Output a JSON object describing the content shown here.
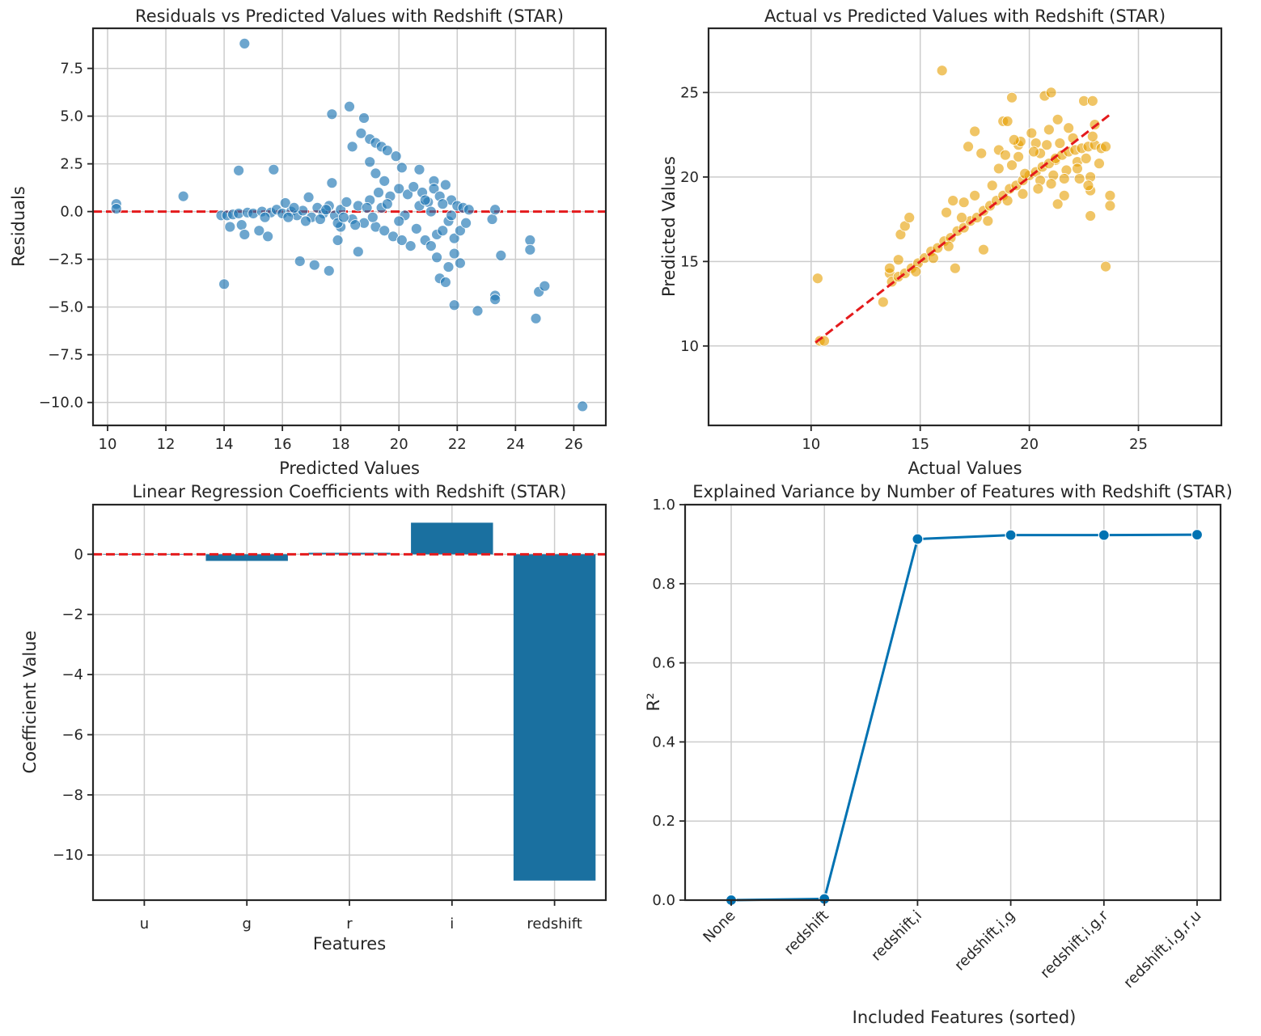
{
  "colors": {
    "blue": "#1f77b4",
    "orange": "#e69f00",
    "line": "#0072b2",
    "bar": "#1a70a0",
    "ref": "#e41a1c"
  },
  "chart_data": [
    {
      "id": "residuals",
      "type": "scatter",
      "title": "Residuals vs Predicted Values with Redshift (STAR)",
      "xlabel": "Predicted Values",
      "ylabel": "Residuals",
      "xlim": [
        9.5,
        27.1
      ],
      "ylim": [
        -11.2,
        9.6
      ],
      "xticks": [
        10,
        12,
        14,
        16,
        18,
        20,
        22,
        24,
        26
      ],
      "yticks": [
        -10.0,
        -7.5,
        -5.0,
        -2.5,
        0.0,
        2.5,
        5.0,
        7.5
      ],
      "ytick_labels": [
        "−10.0",
        "−7.5",
        "−5.0",
        "−2.5",
        "0.0",
        "2.5",
        "5.0",
        "7.5"
      ],
      "grid": true,
      "reference_line": {
        "y": 0
      },
      "points": [
        [
          10.3,
          0.4
        ],
        [
          10.3,
          0.15
        ],
        [
          12.6,
          0.8
        ],
        [
          14.7,
          8.8
        ],
        [
          14.0,
          -3.8
        ],
        [
          14.5,
          2.15
        ],
        [
          15.7,
          2.2
        ],
        [
          14.2,
          -0.8
        ],
        [
          14.6,
          -0.7
        ],
        [
          14.7,
          -1.2
        ],
        [
          15.2,
          -1.0
        ],
        [
          15.5,
          -1.3
        ],
        [
          16.6,
          -2.6
        ],
        [
          17.1,
          -2.8
        ],
        [
          17.6,
          -3.1
        ],
        [
          17.7,
          5.1
        ],
        [
          18.3,
          5.5
        ],
        [
          18.4,
          3.4
        ],
        [
          17.7,
          1.5
        ],
        [
          17.9,
          -1.5
        ],
        [
          18.0,
          -0.8
        ],
        [
          18.6,
          -2.1
        ],
        [
          18.8,
          4.9
        ],
        [
          18.7,
          4.1
        ],
        [
          19.0,
          3.8
        ],
        [
          19.2,
          3.6
        ],
        [
          19.4,
          3.4
        ],
        [
          19.6,
          3.2
        ],
        [
          19.9,
          2.9
        ],
        [
          19.0,
          2.6
        ],
        [
          19.2,
          2.0
        ],
        [
          19.5,
          1.6
        ],
        [
          20.1,
          2.3
        ],
        [
          20.7,
          2.2
        ],
        [
          21.2,
          1.6
        ],
        [
          21.3,
          -2.4
        ],
        [
          21.4,
          -3.5
        ],
        [
          21.6,
          -3.7
        ],
        [
          21.7,
          -2.9
        ],
        [
          21.9,
          -4.9
        ],
        [
          22.1,
          -2.7
        ],
        [
          21.9,
          -2.2
        ],
        [
          22.7,
          -5.2
        ],
        [
          23.2,
          -0.4
        ],
        [
          23.3,
          0.1
        ],
        [
          23.3,
          -4.4
        ],
        [
          23.3,
          -4.6
        ],
        [
          23.5,
          -2.3
        ],
        [
          24.5,
          -1.5
        ],
        [
          24.5,
          -2.0
        ],
        [
          24.7,
          -5.6
        ],
        [
          24.8,
          -4.2
        ],
        [
          25.0,
          -3.9
        ],
        [
          26.3,
          -10.2
        ],
        [
          13.9,
          -0.2
        ],
        [
          14.1,
          -0.2
        ],
        [
          14.3,
          -0.15
        ],
        [
          14.5,
          -0.1
        ],
        [
          14.8,
          -0.05
        ],
        [
          15.0,
          -0.1
        ],
        [
          15.3,
          0.0
        ],
        [
          15.6,
          -0.05
        ],
        [
          15.8,
          0.1
        ],
        [
          16.0,
          -0.1
        ],
        [
          16.1,
          0.45
        ],
        [
          16.3,
          0.0
        ],
        [
          16.5,
          -0.2
        ],
        [
          16.7,
          0.05
        ],
        [
          16.9,
          0.75
        ],
        [
          17.0,
          -0.3
        ],
        [
          17.2,
          0.2
        ],
        [
          17.4,
          -0.1
        ],
        [
          17.6,
          0.3
        ],
        [
          17.8,
          -0.2
        ],
        [
          18.0,
          0.1
        ],
        [
          18.2,
          0.5
        ],
        [
          18.4,
          -0.4
        ],
        [
          18.6,
          0.3
        ],
        [
          18.8,
          -0.6
        ],
        [
          19.0,
          0.6
        ],
        [
          19.2,
          -0.8
        ],
        [
          19.3,
          1.0
        ],
        [
          19.5,
          -1.0
        ],
        [
          19.7,
          0.8
        ],
        [
          19.8,
          -1.3
        ],
        [
          20.0,
          1.2
        ],
        [
          20.1,
          -1.5
        ],
        [
          20.3,
          0.9
        ],
        [
          20.4,
          -1.8
        ],
        [
          20.5,
          1.3
        ],
        [
          20.6,
          -0.9
        ],
        [
          20.8,
          1.0
        ],
        [
          20.9,
          -1.5
        ],
        [
          21.0,
          0.5
        ],
        [
          21.1,
          -1.8
        ],
        [
          21.2,
          1.2
        ],
        [
          21.3,
          -1.2
        ],
        [
          21.4,
          0.8
        ],
        [
          21.5,
          -1.0
        ],
        [
          21.6,
          1.4
        ],
        [
          21.7,
          -0.5
        ],
        [
          21.8,
          0.6
        ],
        [
          21.9,
          -1.4
        ],
        [
          22.0,
          0.3
        ],
        [
          22.1,
          -1.0
        ],
        [
          22.2,
          0.2
        ],
        [
          22.3,
          -0.6
        ],
        [
          22.4,
          0.1
        ],
        [
          15.4,
          -0.3
        ],
        [
          16.2,
          -0.3
        ],
        [
          16.8,
          -0.5
        ],
        [
          17.3,
          -0.4
        ],
        [
          17.9,
          -0.6
        ],
        [
          18.5,
          -0.7
        ],
        [
          19.4,
          0.2
        ],
        [
          20.2,
          -0.2
        ],
        [
          20.7,
          0.3
        ],
        [
          21.1,
          0.0
        ],
        [
          21.5,
          0.4
        ],
        [
          21.8,
          -0.2
        ],
        [
          19.1,
          -0.3
        ],
        [
          19.6,
          0.4
        ],
        [
          20.0,
          -0.5
        ],
        [
          20.9,
          0.6
        ],
        [
          18.9,
          0.2
        ],
        [
          18.1,
          -0.3
        ],
        [
          17.5,
          0.1
        ],
        [
          16.4,
          0.2
        ]
      ]
    },
    {
      "id": "actual-vs-predicted",
      "type": "scatter",
      "title": "Actual vs Predicted Values with Redshift (STAR)",
      "xlabel": "Actual Values",
      "ylabel": "Predicted Values",
      "xlim": [
        5.3,
        28.8
      ],
      "ylim": [
        5.3,
        28.8
      ],
      "xticks": [
        10,
        15,
        20,
        25
      ],
      "yticks": [
        10,
        15,
        20,
        25
      ],
      "grid": true,
      "reference_line": {
        "from": [
          10.2,
          10.2
        ],
        "to": [
          23.7,
          23.7
        ]
      },
      "points": [
        [
          10.3,
          14.0
        ],
        [
          10.4,
          10.3
        ],
        [
          10.6,
          10.3
        ],
        [
          13.3,
          12.6
        ],
        [
          13.6,
          14.3
        ],
        [
          14.1,
          16.6
        ],
        [
          14.3,
          17.1
        ],
        [
          14.5,
          17.6
        ],
        [
          14.0,
          15.1
        ],
        [
          16.0,
          26.3
        ],
        [
          16.2,
          17.9
        ],
        [
          16.5,
          18.6
        ],
        [
          16.6,
          14.6
        ],
        [
          17.0,
          18.5
        ],
        [
          17.2,
          21.8
        ],
        [
          17.5,
          22.7
        ],
        [
          17.8,
          21.4
        ],
        [
          17.9,
          15.7
        ],
        [
          18.6,
          21.6
        ],
        [
          18.8,
          23.3
        ],
        [
          19.0,
          23.3
        ],
        [
          19.2,
          24.7
        ],
        [
          19.5,
          21.9
        ],
        [
          19.6,
          22.1
        ],
        [
          20.3,
          22.0
        ],
        [
          20.5,
          21.4
        ],
        [
          20.7,
          24.8
        ],
        [
          21.0,
          25.0
        ],
        [
          21.3,
          23.4
        ],
        [
          21.2,
          21.0
        ],
        [
          21.3,
          18.4
        ],
        [
          21.6,
          18.9
        ],
        [
          22.2,
          20.9
        ],
        [
          22.5,
          24.5
        ],
        [
          22.8,
          17.7
        ],
        [
          22.9,
          24.5
        ],
        [
          23.0,
          23.1
        ],
        [
          22.8,
          19.2
        ],
        [
          22.8,
          20.0
        ],
        [
          23.5,
          14.7
        ],
        [
          23.7,
          18.9
        ],
        [
          23.7,
          18.3
        ],
        [
          13.7,
          13.8
        ],
        [
          14.0,
          14.1
        ],
        [
          14.3,
          14.3
        ],
        [
          14.6,
          14.6
        ],
        [
          14.9,
          14.9
        ],
        [
          15.2,
          15.2
        ],
        [
          15.5,
          15.6
        ],
        [
          15.8,
          15.8
        ],
        [
          16.1,
          16.2
        ],
        [
          16.4,
          16.4
        ],
        [
          16.7,
          16.8
        ],
        [
          17.0,
          17.0
        ],
        [
          17.3,
          17.4
        ],
        [
          17.6,
          17.6
        ],
        [
          17.9,
          18.0
        ],
        [
          18.2,
          18.3
        ],
        [
          18.5,
          18.6
        ],
        [
          18.8,
          18.9
        ],
        [
          19.1,
          19.3
        ],
        [
          19.4,
          19.5
        ],
        [
          19.7,
          19.8
        ],
        [
          20.0,
          20.1
        ],
        [
          20.3,
          20.3
        ],
        [
          20.6,
          20.6
        ],
        [
          20.9,
          20.8
        ],
        [
          21.2,
          21.1
        ],
        [
          21.5,
          21.3
        ],
        [
          21.8,
          21.5
        ],
        [
          22.1,
          21.6
        ],
        [
          22.4,
          21.7
        ],
        [
          22.7,
          21.8
        ],
        [
          23.0,
          21.9
        ],
        [
          23.3,
          21.7
        ],
        [
          23.5,
          21.8
        ],
        [
          18.6,
          20.5
        ],
        [
          18.9,
          21.3
        ],
        [
          19.2,
          20.7
        ],
        [
          19.5,
          21.2
        ],
        [
          19.8,
          20.2
        ],
        [
          20.2,
          21.5
        ],
        [
          20.5,
          19.8
        ],
        [
          20.8,
          21.9
        ],
        [
          21.1,
          20.1
        ],
        [
          21.4,
          22.0
        ],
        [
          21.7,
          20.4
        ],
        [
          22.0,
          22.3
        ],
        [
          22.3,
          19.9
        ],
        [
          22.6,
          21.1
        ],
        [
          22.9,
          22.4
        ],
        [
          23.2,
          20.8
        ],
        [
          18.3,
          19.5
        ],
        [
          18.1,
          17.4
        ],
        [
          19.0,
          18.6
        ],
        [
          19.7,
          19.0
        ],
        [
          20.4,
          19.3
        ],
        [
          21.0,
          19.6
        ],
        [
          21.6,
          19.9
        ],
        [
          22.2,
          20.5
        ],
        [
          22.7,
          19.5
        ],
        [
          19.3,
          22.2
        ],
        [
          20.1,
          22.6
        ],
        [
          20.9,
          22.8
        ],
        [
          21.8,
          22.9
        ],
        [
          17.5,
          18.9
        ],
        [
          16.9,
          17.6
        ],
        [
          15.6,
          15.2
        ],
        [
          16.3,
          15.9
        ],
        [
          14.8,
          14.4
        ],
        [
          13.6,
          14.6
        ]
      ]
    },
    {
      "id": "coefficients",
      "type": "bar",
      "title": "Linear Regression Coefficients with Redshift (STAR)",
      "xlabel": "Features",
      "ylabel": "Coefficient Value",
      "categories": [
        "u",
        "g",
        "r",
        "i",
        "redshift"
      ],
      "values": [
        0.0,
        -0.22,
        0.05,
        1.05,
        -10.85
      ],
      "ylim": [
        -11.5,
        1.65
      ],
      "yticks": [
        -10,
        -8,
        -6,
        -4,
        -2,
        0
      ],
      "ytick_labels": [
        "−10",
        "−8",
        "−6",
        "−4",
        "−2",
        "0"
      ],
      "grid": true,
      "reference_line": {
        "y": 0
      }
    },
    {
      "id": "explained-variance",
      "type": "line",
      "title": "Explained Variance by Number of Features with Redshift (STAR)",
      "xlabel": "Included Features (sorted)",
      "ylabel": "R²",
      "categories": [
        "None",
        "redshift",
        "redshift,i",
        "redshift,i,g",
        "redshift,i,g,r",
        "redshift,i,g,r,u"
      ],
      "values": [
        0.0,
        0.003,
        0.913,
        0.923,
        0.923,
        0.924
      ],
      "ylim": [
        0.0,
        1.0
      ],
      "yticks": [
        0.0,
        0.2,
        0.4,
        0.6,
        0.8,
        1.0
      ],
      "ytick_labels": [
        "0.0",
        "0.2",
        "0.4",
        "0.6",
        "0.8",
        "1.0"
      ],
      "grid": true
    }
  ]
}
